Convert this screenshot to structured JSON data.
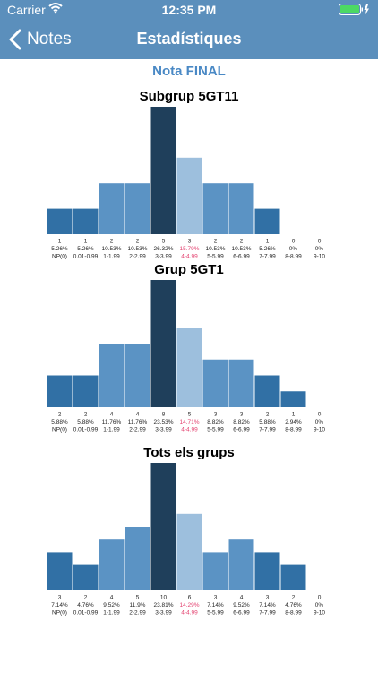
{
  "status_bar": {
    "carrier": "Carrier",
    "time": "12:35 PM"
  },
  "nav": {
    "back_label": "Notes",
    "title": "Estadístiques"
  },
  "section_title": "Nota FINAL",
  "colors": {
    "nav_bg": "#5b8fbc",
    "ranges": [
      "#3170a5",
      "#3170a5",
      "#5b93c4",
      "#5b93c4",
      "#1f3f5b",
      "#9dbfdd",
      "#5b93c4",
      "#5b93c4",
      "#3170a5",
      "#3170a5",
      "#3170a5"
    ],
    "highlight_pct": "#e3416f"
  },
  "chart_data": [
    {
      "type": "bar",
      "title": "Subgrup 5GT11",
      "categories": [
        "NP(0)",
        "0.01-0.99",
        "1-1.99",
        "2-2.99",
        "3-3.99",
        "4-4.99",
        "5-5.99",
        "6-6.99",
        "7-7.99",
        "8-8.99",
        "9-10"
      ],
      "values": [
        1,
        1,
        2,
        2,
        5,
        3,
        2,
        2,
        1,
        0,
        0
      ],
      "percents": [
        "5.26%",
        "5.26%",
        "10.53%",
        "10.53%",
        "26.32%",
        "15.79%",
        "10.53%",
        "10.53%",
        "5.26%",
        "0%",
        "0%"
      ],
      "highlight_index": 5
    },
    {
      "type": "bar",
      "title": "Grup 5GT1",
      "categories": [
        "NP(0)",
        "0.01-0.99",
        "1-1.99",
        "2-2.99",
        "3-3.99",
        "4-4.99",
        "5-5.99",
        "6-6.99",
        "7-7.99",
        "8-8.99",
        "9-10"
      ],
      "values": [
        2,
        2,
        4,
        4,
        8,
        5,
        3,
        3,
        2,
        1,
        0
      ],
      "percents": [
        "5.88%",
        "5.88%",
        "11.76%",
        "11.76%",
        "23.53%",
        "14.71%",
        "8.82%",
        "8.82%",
        "5.88%",
        "2.94%",
        "0%"
      ],
      "highlight_index": 5
    },
    {
      "type": "bar",
      "title": "Tots els grups",
      "categories": [
        "NP(0)",
        "0.01-0.99",
        "1-1.99",
        "2-2.99",
        "3-3.99",
        "4-4.99",
        "5-5.99",
        "6-6.99",
        "7-7.99",
        "8-8.99",
        "9-10"
      ],
      "values": [
        3,
        2,
        4,
        5,
        10,
        6,
        3,
        4,
        3,
        2,
        0
      ],
      "percents": [
        "7.14%",
        "4.76%",
        "9.52%",
        "11.9%",
        "23.81%",
        "14.29%",
        "7.14%",
        "9.52%",
        "7.14%",
        "4.76%",
        "0%"
      ],
      "highlight_index": 5
    }
  ]
}
